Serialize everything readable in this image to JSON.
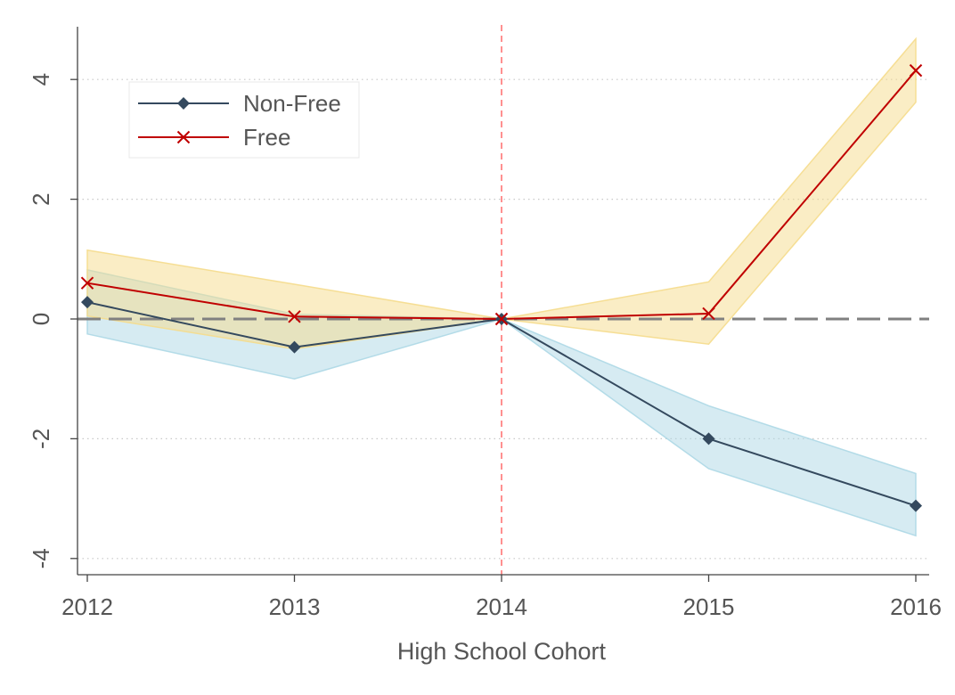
{
  "chart_data": {
    "type": "line",
    "title": "",
    "xlabel": "High School Cohort",
    "ylabel": "",
    "x": [
      2012,
      2013,
      2014,
      2015,
      2016
    ],
    "xlim": [
      2012,
      2016
    ],
    "ylim": [
      -4.3,
      4.9
    ],
    "yticks": [
      -4,
      -2,
      0,
      2,
      4
    ],
    "grid": "horizontal-dotted",
    "reference_lines": [
      {
        "axis": "y",
        "value": 0,
        "style": "dashed",
        "color": "#808080"
      },
      {
        "axis": "x",
        "value": 2014,
        "style": "dashed",
        "color": "#ff6b6b"
      }
    ],
    "legend": {
      "placement": "top-left"
    },
    "series": [
      {
        "name": "Non-Free",
        "color": "#34495e",
        "band_color": "#add8e6",
        "marker": "diamond",
        "values": [
          0.28,
          -0.47,
          0.0,
          -2.0,
          -3.12
        ],
        "ci_lower": [
          -0.25,
          -1.0,
          0.0,
          -2.5,
          -3.62
        ],
        "ci_upper": [
          0.82,
          0.08,
          0.0,
          -1.45,
          -2.58
        ]
      },
      {
        "name": "Free",
        "color": "#c00000",
        "band_color": "#f5dc8c",
        "marker": "x",
        "values": [
          0.6,
          0.04,
          0.0,
          0.09,
          4.15
        ],
        "ci_lower": [
          0.05,
          -0.5,
          0.0,
          -0.42,
          3.62
        ],
        "ci_upper": [
          1.15,
          0.58,
          0.0,
          0.62,
          4.68
        ]
      }
    ]
  }
}
